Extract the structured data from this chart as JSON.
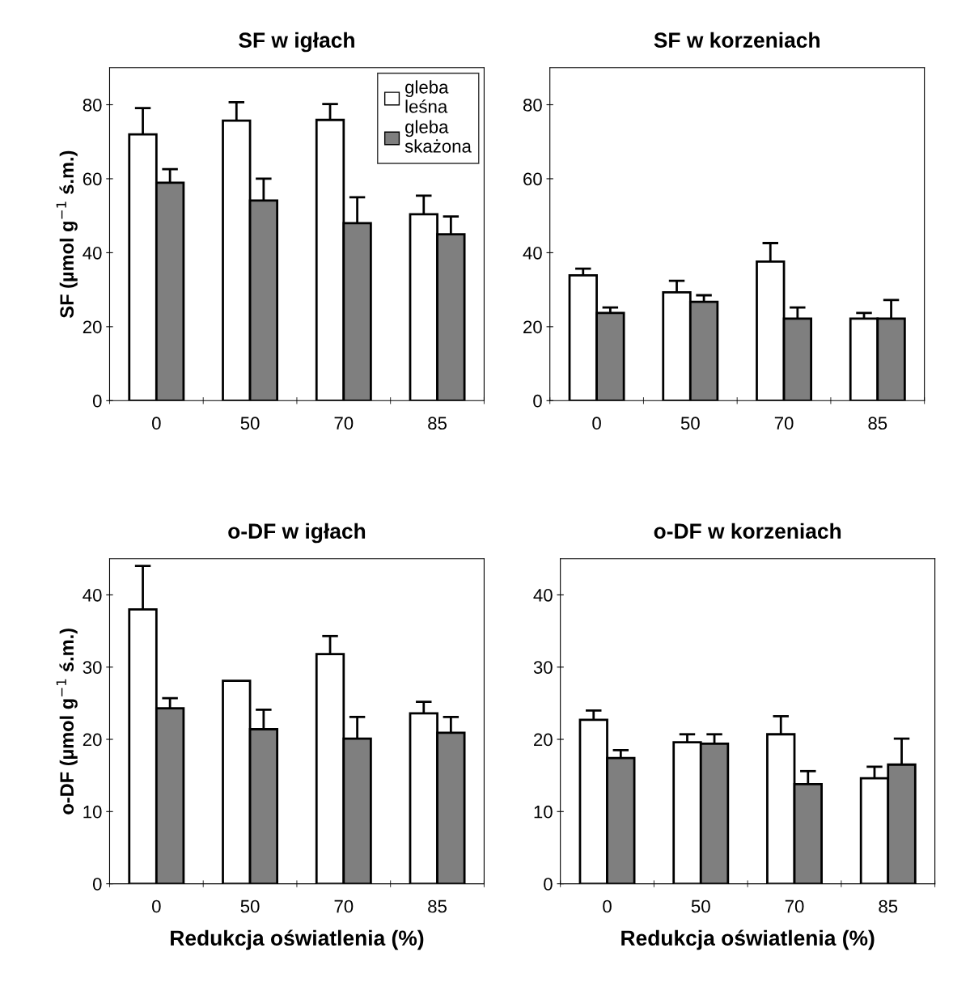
{
  "chart_data": [
    {
      "type": "bar",
      "title": "SF w igłach",
      "ylabel": "SF (µmol g$^{−1}$ ś.m.)",
      "categories": [
        "0",
        "50",
        "70",
        "85"
      ],
      "ylim": [
        0,
        90
      ],
      "yticks": [
        0,
        20,
        40,
        60,
        80
      ],
      "legend": "top right",
      "grid": false,
      "series": [
        {
          "name": "gleba leśna",
          "color": "#ffffff",
          "values": [
            72,
            75.7,
            75.9,
            50.4
          ],
          "errors": [
            7.1,
            5.0,
            4.3,
            5.0
          ]
        },
        {
          "name": "gleba skażona",
          "color": "#7f7f7f",
          "values": [
            58.9,
            54.1,
            48,
            45
          ],
          "errors": [
            3.7,
            5.9,
            7.0,
            4.8
          ]
        }
      ]
    },
    {
      "type": "bar",
      "title": "SF w korzeniach",
      "categories": [
        "0",
        "50",
        "70",
        "85"
      ],
      "ylim": [
        0,
        90
      ],
      "yticks": [
        0,
        20,
        40,
        60,
        80
      ],
      "grid": false,
      "series": [
        {
          "color": "#ffffff",
          "values": [
            33.9,
            29.3,
            37.6,
            22.2
          ],
          "errors": [
            1.8,
            3.1,
            5.0,
            1.5
          ]
        },
        {
          "color": "#7f7f7f",
          "values": [
            23.7,
            26.7,
            22.2,
            22.2
          ],
          "errors": [
            1.5,
            1.8,
            3.0,
            5.0
          ]
        }
      ]
    },
    {
      "type": "bar",
      "title": "o-DF w igłach",
      "xlabel": "Redukcja oświatlenia (%)",
      "ylabel": "o-DF (µmol g$^{−1}$ ś.m.)",
      "categories": [
        "0",
        "50",
        "70",
        "85"
      ],
      "ylim": [
        0,
        45
      ],
      "yticks": [
        0,
        10,
        20,
        30,
        40
      ],
      "grid": false,
      "series": [
        {
          "color": "#ffffff",
          "values": [
            38,
            28.1,
            31.8,
            23.6
          ],
          "errors": [
            6,
            null,
            2.5,
            1.6
          ]
        },
        {
          "color": "#7f7f7f",
          "values": [
            24.3,
            21.4,
            20.1,
            20.9
          ],
          "errors": [
            1.4,
            2.7,
            3.0,
            2.2
          ]
        }
      ]
    },
    {
      "type": "bar",
      "title": "o-DF w korzeniach",
      "xlabel": "Redukcja oświatlenia (%)",
      "categories": [
        "0",
        "50",
        "70",
        "85"
      ],
      "ylim": [
        0,
        45
      ],
      "yticks": [
        0,
        10,
        20,
        30,
        40
      ],
      "grid": false,
      "series": [
        {
          "color": "#ffffff",
          "values": [
            22.7,
            19.6,
            20.7,
            14.6
          ],
          "errors": [
            1.3,
            1.1,
            2.5,
            1.6
          ]
        },
        {
          "color": "#7f7f7f",
          "values": [
            17.4,
            19.4,
            13.8,
            16.5
          ],
          "errors": [
            1.1,
            1.3,
            1.8,
            3.6
          ]
        }
      ]
    }
  ]
}
